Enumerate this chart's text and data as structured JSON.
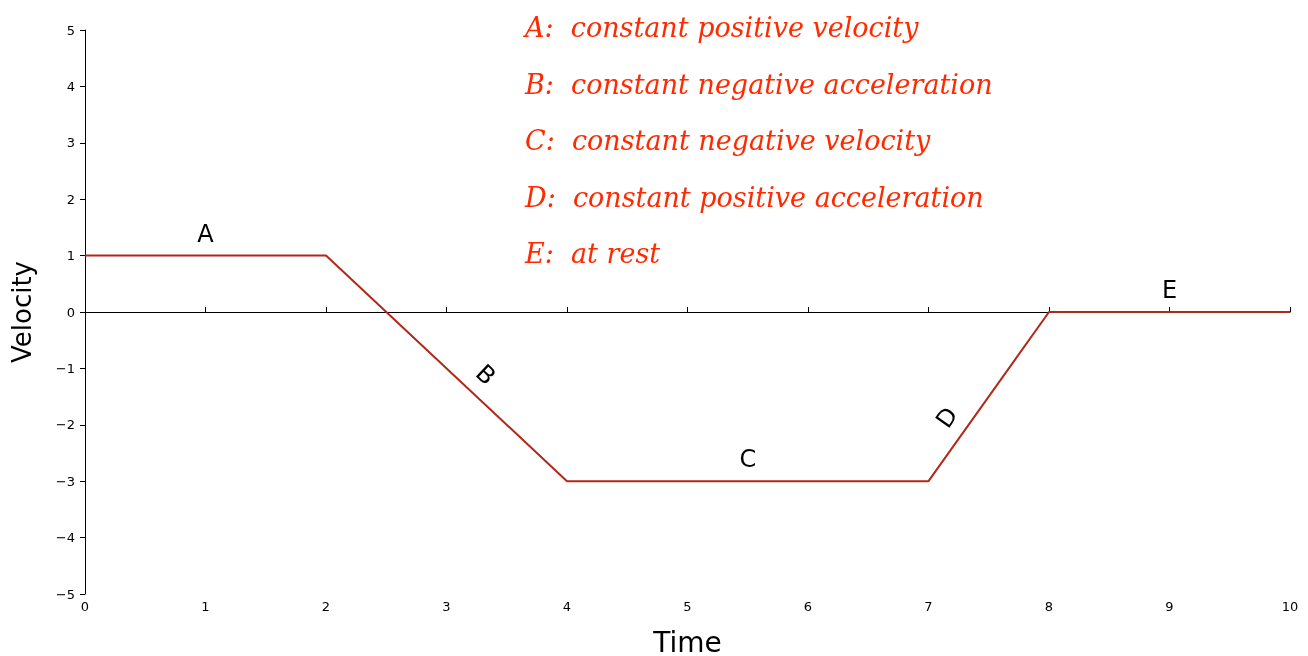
{
  "chart_data": {
    "type": "line",
    "xlabel": "Time",
    "ylabel": "Velocity",
    "x": [
      0,
      2,
      4,
      7,
      8,
      10
    ],
    "series": [
      {
        "color": "#b0281a",
        "values": [
          1,
          1,
          -3,
          -3,
          0,
          0
        ]
      }
    ],
    "xlim": [
      0,
      10
    ],
    "xticks": [
      0,
      1,
      2,
      3,
      4,
      5,
      6,
      7,
      8,
      9,
      10
    ],
    "ylim": [
      -5,
      5
    ],
    "yticks": [
      -5,
      -4,
      -3,
      -2,
      -1,
      0,
      1,
      2,
      3,
      4,
      5
    ],
    "marker": "none",
    "line_style": "solid",
    "annotations": [
      "A:  constant positive velocity",
      "B:  constant negative acceleration",
      "C:  constant negative velocity",
      "D:  constant positive acceleration",
      "E:  at rest",
      {
        "text": "A",
        "x": 1,
        "y": 1
      },
      {
        "text": "B",
        "x": 3.2,
        "y": -1.4
      },
      {
        "text": "C",
        "x": 5.5,
        "y": -3
      },
      {
        "text": "D",
        "x": 7.3,
        "y": -2.1
      },
      {
        "text": "E",
        "x": 9,
        "y": 0
      }
    ]
  }
}
